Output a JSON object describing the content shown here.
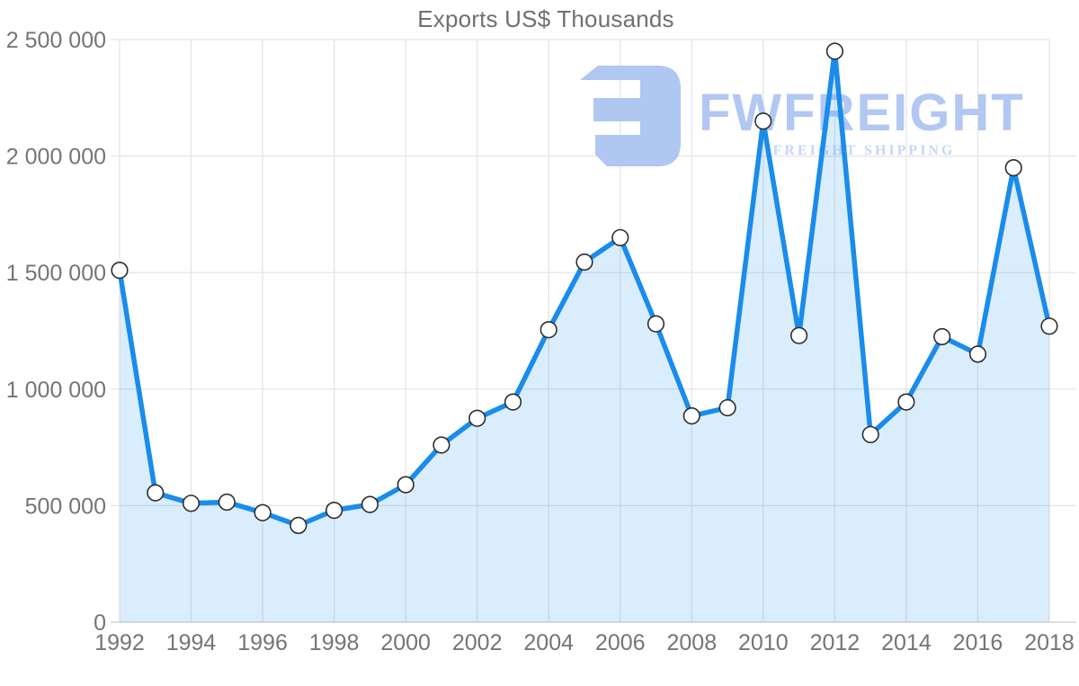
{
  "title": "Exports US$ Thousands",
  "watermark": {
    "brand": "FWFREIGHT",
    "tagline": "FREIGHT SHIPPING",
    "icon": "fwfreight-logo",
    "icon_color": "#b0c7f1",
    "brand_color": "#b2c8f2",
    "tagline_color": "#c6d6f6"
  },
  "colors": {
    "line": "#198cec",
    "area_fill": "rgba(25,140,236,0.16)",
    "grid": "#e3e3e3",
    "axis_line": "#cccccc",
    "tick_text": "#757575",
    "title_text": "#707070",
    "marker_fill": "#ffffff",
    "marker_stroke": "#2e2e2e"
  },
  "chart_data": {
    "type": "area",
    "title": "Exports US$ Thousands",
    "xlabel": "",
    "ylabel": "",
    "grid": true,
    "legend": "none",
    "ylim": [
      0,
      2500000
    ],
    "y_tick_step": 500000,
    "y_tick_labels": [
      "0",
      "500 000",
      "1 000 000",
      "1 500 000",
      "2 000 000",
      "2 500 000"
    ],
    "x_tick_labels": [
      "1992",
      "1994",
      "1996",
      "1998",
      "2000",
      "2002",
      "2004",
      "2006",
      "2008",
      "2010",
      "2012",
      "2014",
      "2016",
      "2018"
    ],
    "x": [
      1992,
      1993,
      1994,
      1995,
      1996,
      1997,
      1998,
      1999,
      2000,
      2001,
      2002,
      2003,
      2004,
      2005,
      2006,
      2007,
      2008,
      2009,
      2010,
      2011,
      2012,
      2013,
      2014,
      2015,
      2016,
      2017,
      2018
    ],
    "values": [
      1510000,
      555000,
      510000,
      515000,
      470000,
      415000,
      480000,
      505000,
      590000,
      760000,
      875000,
      945000,
      1255000,
      1545000,
      1650000,
      1280000,
      885000,
      920000,
      2150000,
      1230000,
      2450000,
      805000,
      945000,
      1225000,
      1150000,
      1950000,
      1270000
    ]
  }
}
